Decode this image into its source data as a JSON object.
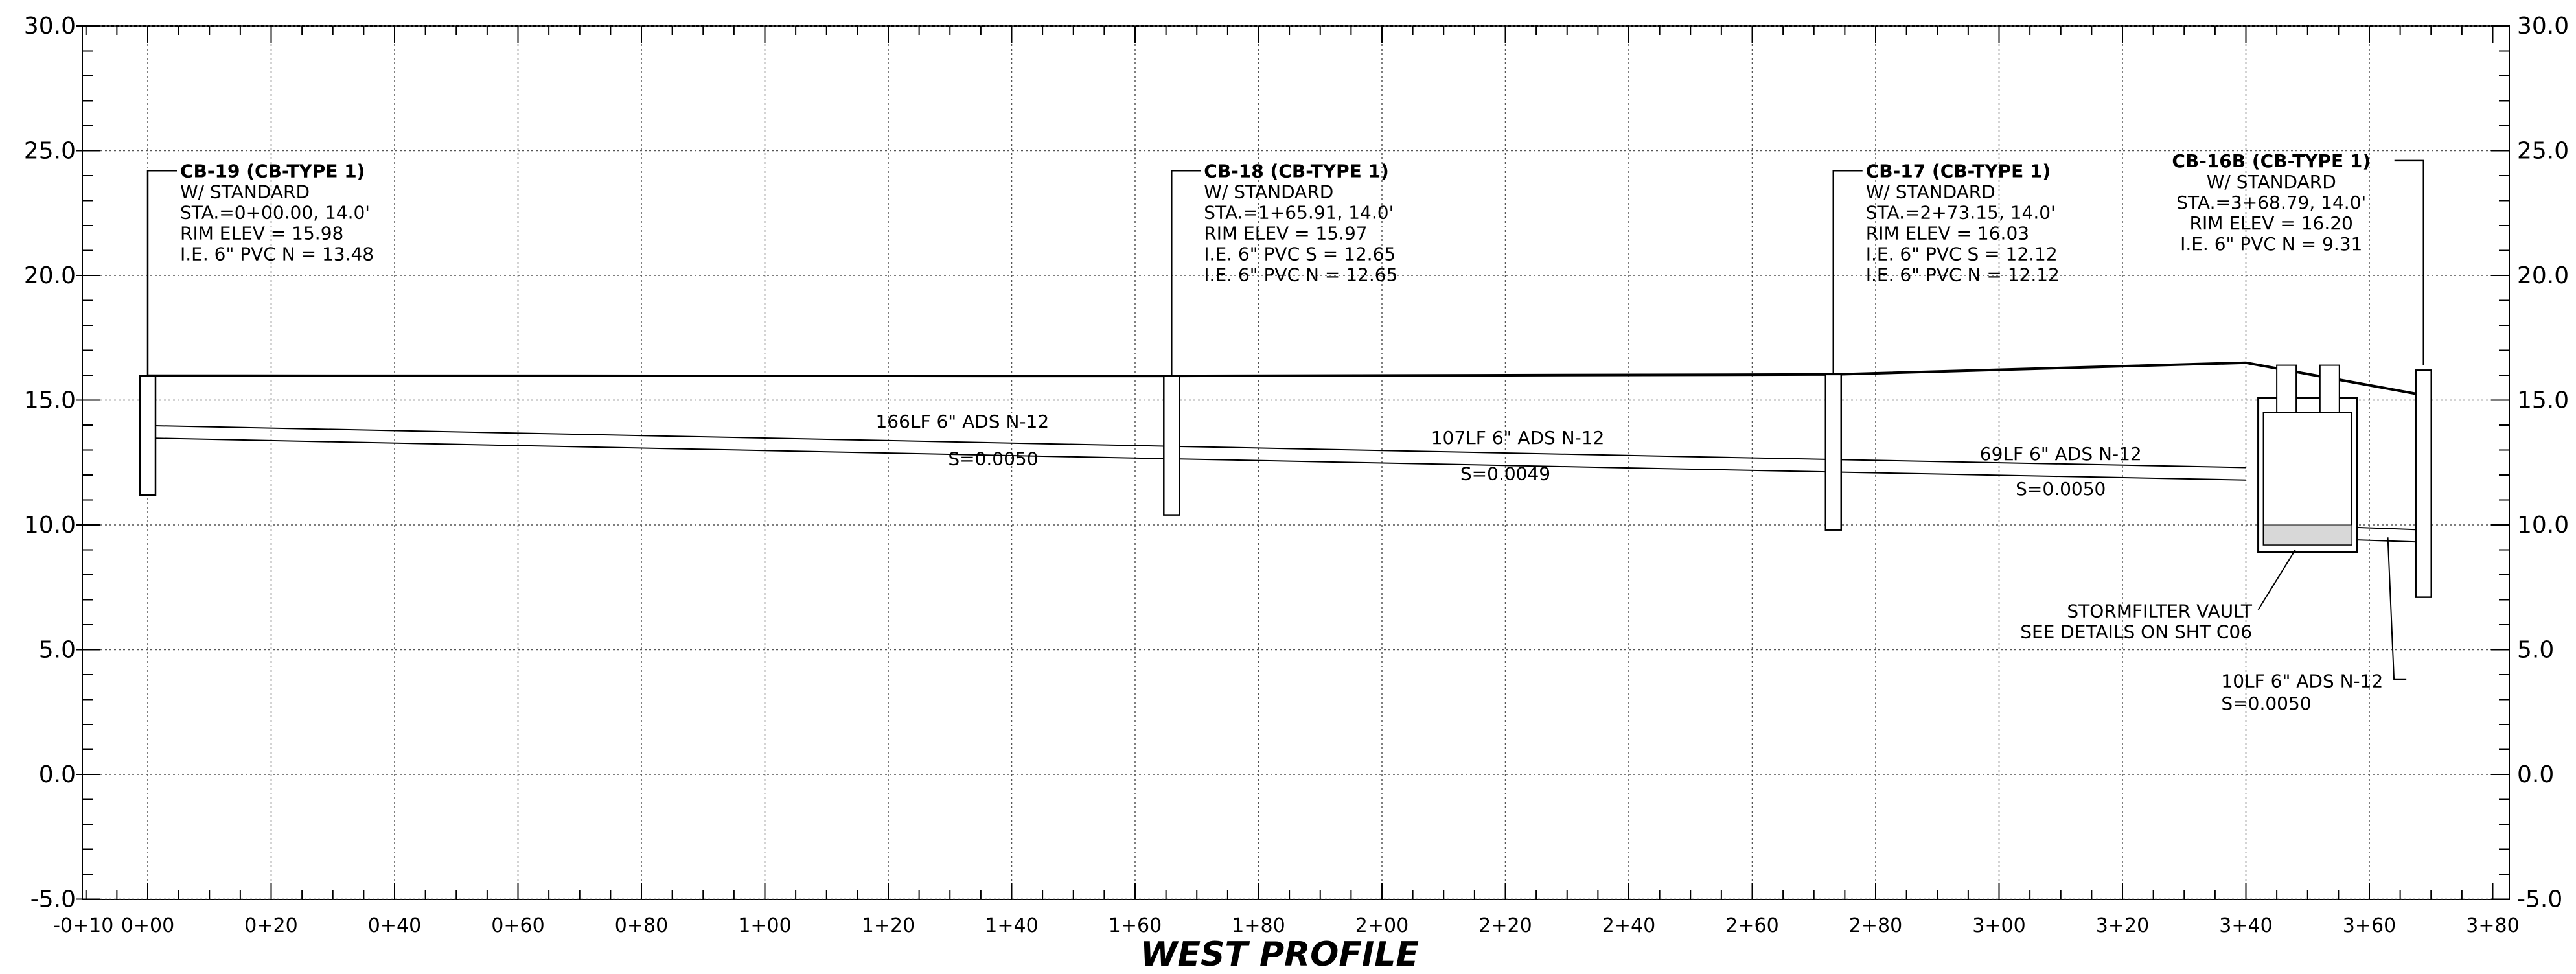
{
  "title": "WEST PROFILE",
  "elevation_axis": {
    "ticks": [
      {
        "value": 30,
        "label": "30.0"
      },
      {
        "value": 25,
        "label": "25.0"
      },
      {
        "value": 20,
        "label": "20.0"
      },
      {
        "value": 15,
        "label": "15.0"
      },
      {
        "value": 10,
        "label": "10.0"
      },
      {
        "value": 5,
        "label": "5.0"
      },
      {
        "value": 0,
        "label": "0.0"
      },
      {
        "value": -5,
        "label": "-5.0"
      }
    ]
  },
  "station_axis": {
    "ticks": [
      {
        "value": -10,
        "label": "-0+10"
      },
      {
        "value": 0,
        "label": "0+00"
      },
      {
        "value": 20,
        "label": "0+20"
      },
      {
        "value": 40,
        "label": "0+40"
      },
      {
        "value": 60,
        "label": "0+60"
      },
      {
        "value": 80,
        "label": "0+80"
      },
      {
        "value": 100,
        "label": "1+00"
      },
      {
        "value": 120,
        "label": "1+20"
      },
      {
        "value": 140,
        "label": "1+40"
      },
      {
        "value": 160,
        "label": "1+60"
      },
      {
        "value": 180,
        "label": "1+80"
      },
      {
        "value": 200,
        "label": "2+00"
      },
      {
        "value": 220,
        "label": "2+20"
      },
      {
        "value": 240,
        "label": "2+40"
      },
      {
        "value": 260,
        "label": "2+60"
      },
      {
        "value": 280,
        "label": "2+80"
      },
      {
        "value": 300,
        "label": "3+00"
      },
      {
        "value": 320,
        "label": "3+20"
      },
      {
        "value": 340,
        "label": "3+40"
      },
      {
        "value": 360,
        "label": "3+60"
      },
      {
        "value": 380,
        "label": "3+80"
      }
    ]
  },
  "structures": [
    {
      "station": 0.0,
      "rim": 15.98,
      "bottom": 11.2,
      "lines": [
        "CB-19 (CB-TYPE 1)",
        "W/ STANDARD",
        "STA.=0+00.00, 14.0'",
        "RIM ELEV = 15.98",
        "I.E. 6\" PVC N = 13.48"
      ]
    },
    {
      "station": 165.91,
      "rim": 15.97,
      "bottom": 10.4,
      "lines": [
        "CB-18 (CB-TYPE 1)",
        "W/ STANDARD",
        "STA.=1+65.91, 14.0'",
        "RIM ELEV = 15.97",
        "I.E. 6\" PVC S = 12.65",
        "I.E. 6\" PVC N = 12.65"
      ]
    },
    {
      "station": 273.15,
      "rim": 16.03,
      "bottom": 9.8,
      "lines": [
        "CB-17 (CB-TYPE 1)",
        "W/ STANDARD",
        "STA.=2+73.15, 14.0'",
        "RIM ELEV = 16.03",
        "I.E. 6\" PVC S = 12.12",
        "I.E. 6\" PVC N = 12.12"
      ]
    },
    {
      "station": 368.79,
      "rim": 16.2,
      "bottom": 7.1,
      "lines": [
        "CB-16B (CB-TYPE 1)",
        "W/ STANDARD",
        "STA.=3+68.79, 14.0'",
        "RIM ELEV = 16.20",
        "I.E. 6\" PVC N = 9.31"
      ]
    }
  ],
  "pipes": [
    {
      "label": "166LF 6\" ADS N-12",
      "slope": "S=0.0050"
    },
    {
      "label": "107LF 6\" ADS N-12",
      "slope": "S=0.0049"
    },
    {
      "label": "69LF 6\" ADS N-12",
      "slope": "S=0.0050"
    },
    {
      "label": "10LF 6\" ADS N-12",
      "slope": "S=0.0050"
    }
  ],
  "ground_profile": [
    {
      "station": 0.0,
      "elev": 15.98
    },
    {
      "station": 165.91,
      "elev": 15.97
    },
    {
      "station": 273.15,
      "elev": 16.03
    },
    {
      "station": 340.0,
      "elev": 16.5
    },
    {
      "station": 368.79,
      "elev": 15.2
    }
  ],
  "vault": {
    "lines": [
      "STORMFILTER VAULT",
      "SEE DETAILS ON SHT C06"
    ]
  }
}
